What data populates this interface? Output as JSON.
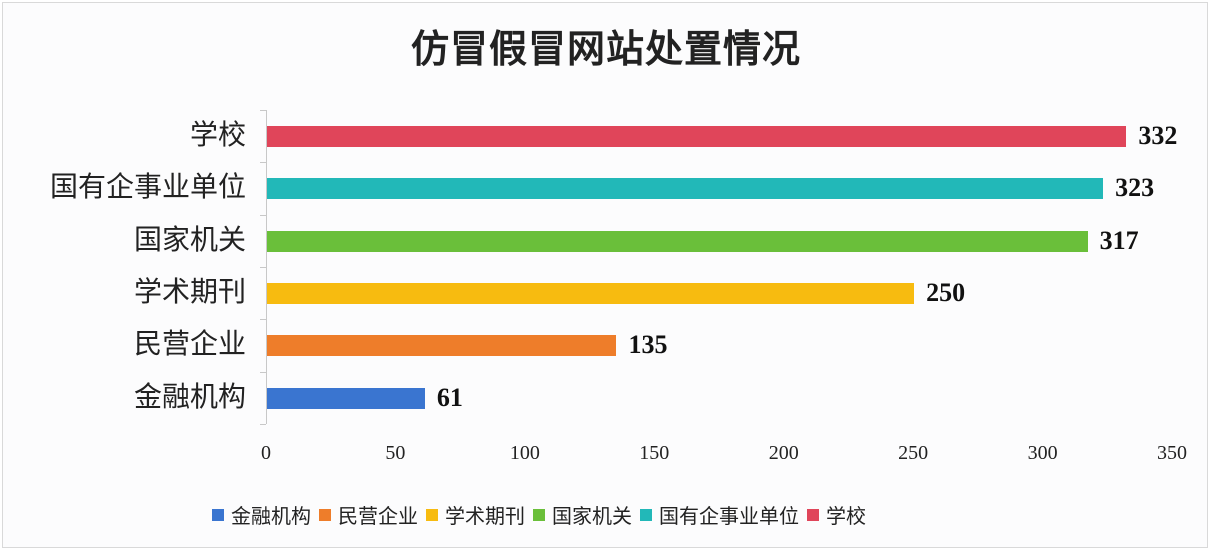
{
  "chart_data": {
    "type": "bar",
    "orientation": "horizontal",
    "title": "仿冒假冒网站处置情况",
    "categories": [
      "学校",
      "国有企事业单位",
      "国家机关",
      "学术期刊",
      "民营企业",
      "金融机构"
    ],
    "values": [
      332,
      323,
      317,
      250,
      135,
      61
    ],
    "colors": [
      "#e0455a",
      "#22b8b8",
      "#6abf3a",
      "#f7bb10",
      "#ee7d2a",
      "#3a75d0"
    ],
    "xlabel": "",
    "ylabel": "",
    "xlim": [
      0,
      350
    ],
    "xticks": [
      "0",
      "50",
      "100",
      "150",
      "200",
      "250",
      "300",
      "350"
    ],
    "grid": false,
    "data_labels": [
      "332",
      "323",
      "317",
      "250",
      "135",
      "61"
    ],
    "legend": {
      "position": "bottom",
      "entries": [
        {
          "label": "金融机构",
          "color": "#3a75d0"
        },
        {
          "label": "民营企业",
          "color": "#ee7d2a"
        },
        {
          "label": "学术期刊",
          "color": "#f7bb10"
        },
        {
          "label": "国家机关",
          "color": "#6abf3a"
        },
        {
          "label": "国有企事业单位",
          "color": "#22b8b8"
        },
        {
          "label": "学校",
          "color": "#e0455a"
        }
      ]
    }
  }
}
